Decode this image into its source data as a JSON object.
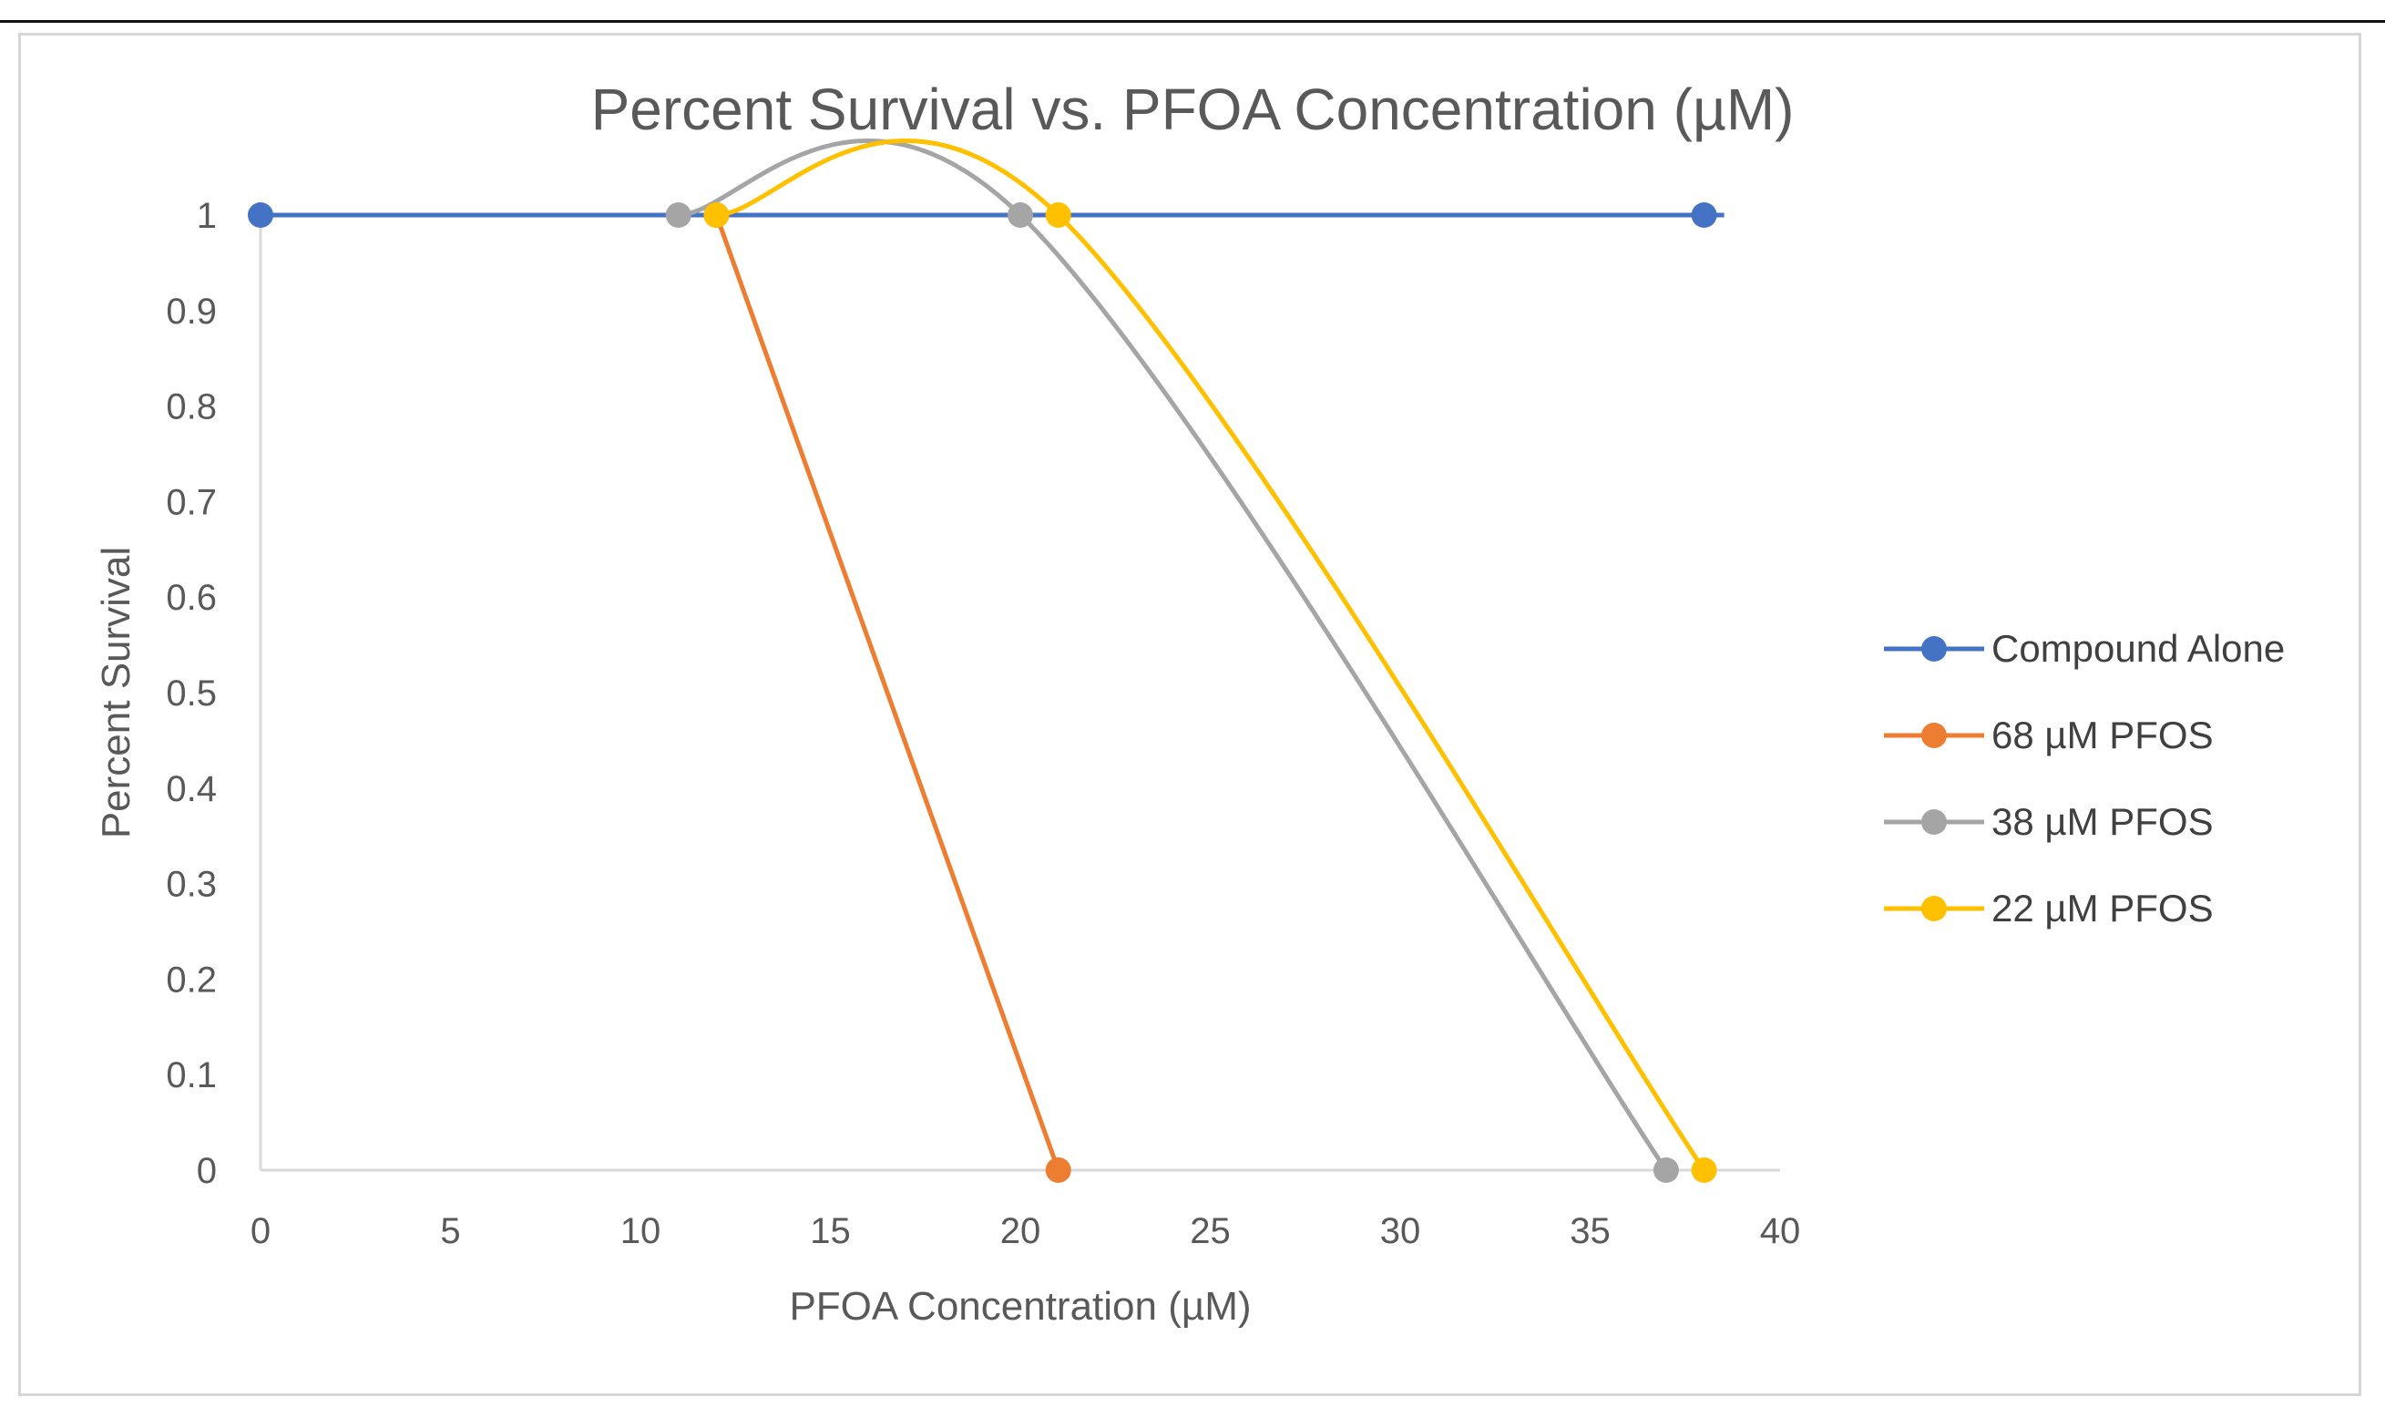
{
  "chart_data": {
    "type": "scatter",
    "title": "Percent Survival vs. PFOA Concentration (µM)",
    "xlabel": "PFOA Concentration (µM)",
    "ylabel": "Percent Survival",
    "xlim": [
      0,
      40
    ],
    "ylim": [
      0,
      1
    ],
    "x_ticks": [
      0,
      5,
      10,
      15,
      20,
      25,
      30,
      35,
      40
    ],
    "y_ticks": [
      0,
      0.1,
      0.2,
      0.3,
      0.4,
      0.5,
      0.6,
      0.7,
      0.8,
      0.9,
      1
    ],
    "y_tick_labels": [
      "0",
      "0.1",
      "0.2",
      "0.3",
      "0.4",
      "0.5",
      "0.6",
      "0.7",
      "0.8",
      "0.9",
      "1"
    ],
    "grid": false,
    "legend_position": "right",
    "series": [
      {
        "name": "Compound Alone",
        "color": "#4472c4",
        "points": [
          [
            0,
            1
          ],
          [
            38,
            1
          ]
        ]
      },
      {
        "name": "68 µM PFOS",
        "color": "#ed7d31",
        "points": [
          [
            12,
            1
          ],
          [
            21,
            0
          ]
        ]
      },
      {
        "name": "38 µM PFOS",
        "color": "#a5a5a5",
        "points": [
          [
            11,
            1
          ],
          [
            20,
            1
          ],
          [
            37,
            0
          ]
        ]
      },
      {
        "name": "22 µM PFOS",
        "color": "#ffc000",
        "points": [
          [
            12,
            1
          ],
          [
            21,
            1
          ],
          [
            38,
            0
          ]
        ]
      }
    ]
  }
}
